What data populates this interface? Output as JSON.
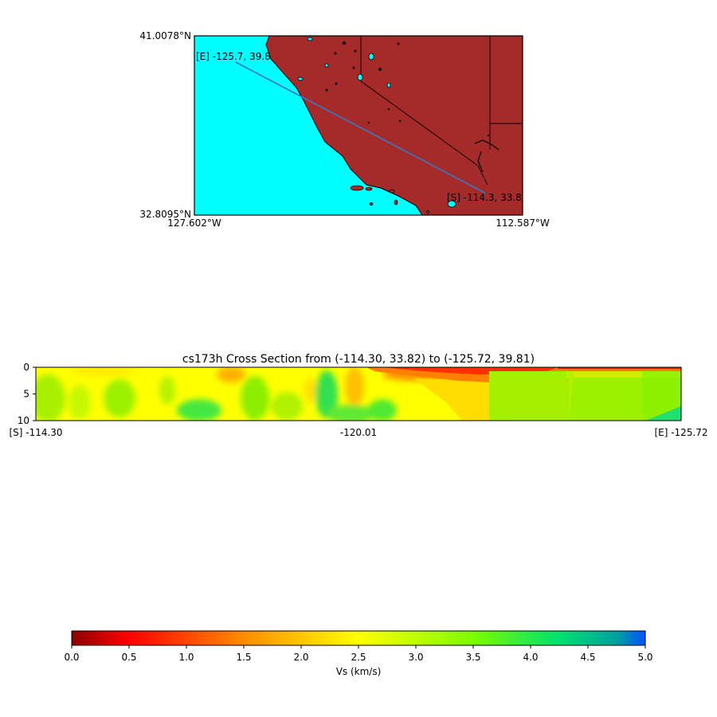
{
  "chart_data": [
    {
      "type": "map",
      "lat_top": "41.0078°N",
      "lat_bottom": "32.8095°N",
      "lon_left": "127.602°W",
      "lon_right": "112.587°W",
      "lon_range": [
        -127.602,
        -112.587
      ],
      "lat_range": [
        32.8095,
        41.0078
      ],
      "start_label": "[S] -114.3, 33.8",
      "end_label": "[E] -125.7, 39.8",
      "start": {
        "lon": -114.3,
        "lat": 33.82
      },
      "end": {
        "lon": -125.72,
        "lat": 39.81
      },
      "colors": {
        "ocean": "#00ffff",
        "land": "#a52a2a",
        "path": "#3b78c4"
      }
    },
    {
      "type": "heatmap",
      "title": "cs173h Cross Section from (-114.30, 33.82) to (-125.72, 39.81)",
      "yticks": [
        "0",
        "5",
        "10"
      ],
      "ylim": [
        0,
        10
      ],
      "xticks": [
        "[S] -114.30",
        "-120.01",
        "[E] -125.72"
      ]
    },
    {
      "type": "colorbar",
      "label": "Vs (km/s)",
      "ticks": [
        "0.0",
        "0.5",
        "1.0",
        "1.5",
        "2.0",
        "2.5",
        "3.0",
        "3.5",
        "4.0",
        "4.5",
        "5.0"
      ],
      "range": [
        0,
        5
      ]
    }
  ]
}
